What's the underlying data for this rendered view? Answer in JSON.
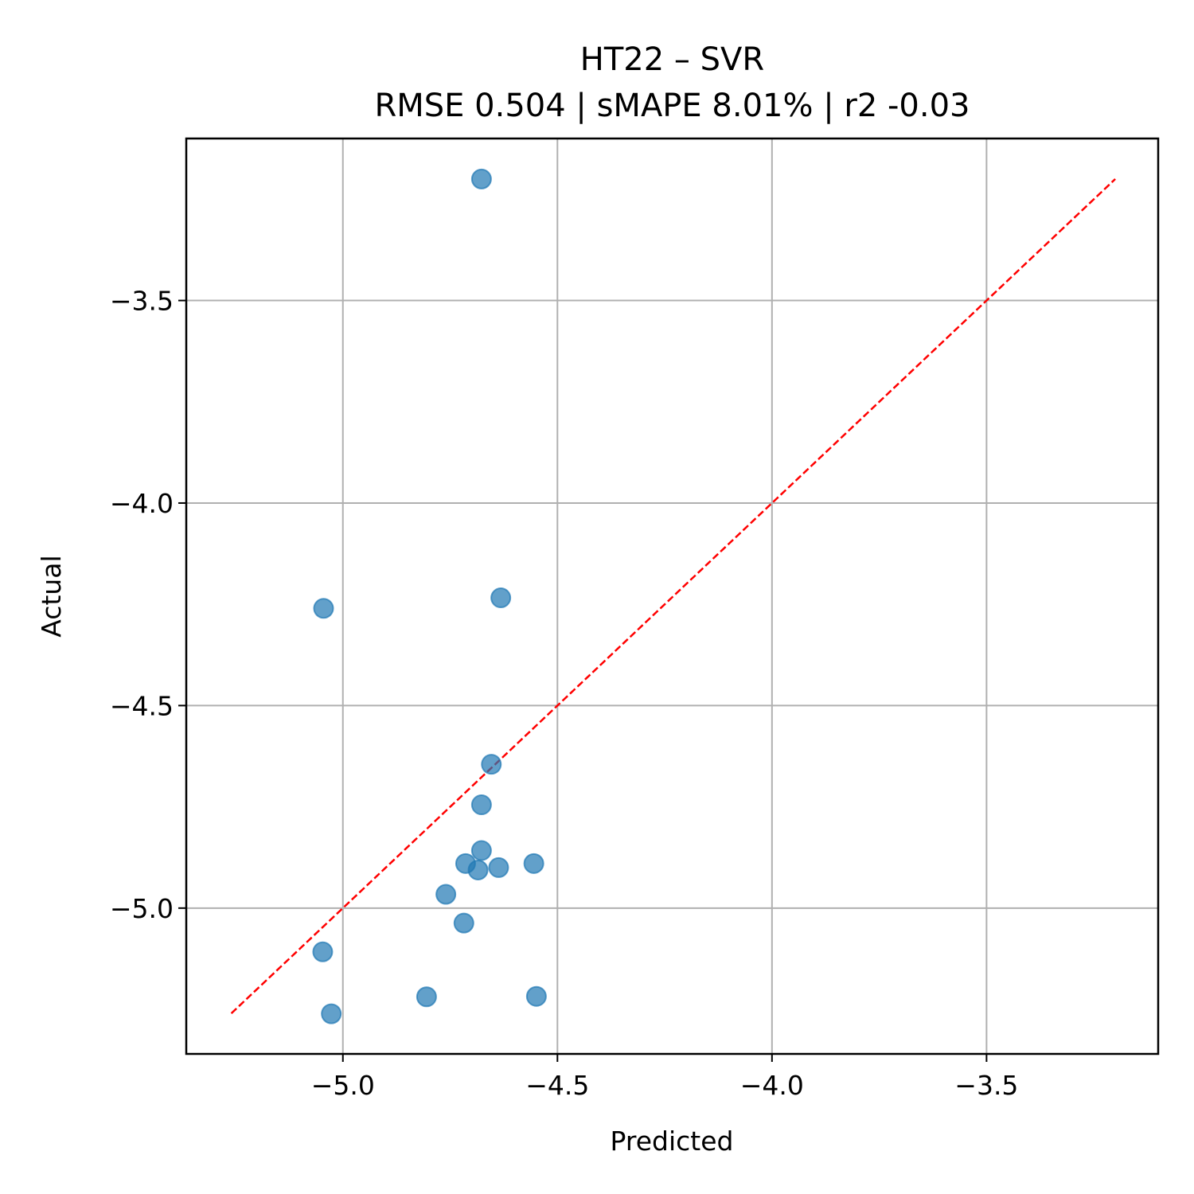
{
  "chart_data": {
    "type": "scatter",
    "title_line1": "HT22 – SVR",
    "title_line2": "RMSE 0.504 | sMAPE 8.01%  | r2 -0.03",
    "xlabel": "Predicted",
    "ylabel": "Actual",
    "xlim": [
      -5.365,
      -3.1
    ],
    "ylim": [
      -5.36,
      -3.1
    ],
    "xticks": [
      -5.0,
      -4.5,
      -4.0,
      -3.5
    ],
    "xtick_labels": [
      "−5.0",
      "−4.5",
      "−4.0",
      "−3.5"
    ],
    "yticks": [
      -5.0,
      -4.5,
      -4.0,
      -3.5
    ],
    "ytick_labels": [
      "−5.0",
      "−4.5",
      "−4.0",
      "−3.5"
    ],
    "grid": true,
    "point_color": "#1f77b4",
    "reference_line": {
      "from": [
        -5.26,
        -5.26
      ],
      "to": [
        -3.2,
        -3.2
      ],
      "color": "#ff0000",
      "style": "dashed"
    },
    "points": [
      {
        "x": -4.677,
        "y": -3.2
      },
      {
        "x": -5.045,
        "y": -4.26
      },
      {
        "x": -4.632,
        "y": -4.234
      },
      {
        "x": -4.654,
        "y": -4.645
      },
      {
        "x": -4.677,
        "y": -4.745
      },
      {
        "x": -4.677,
        "y": -4.858
      },
      {
        "x": -4.714,
        "y": -4.89
      },
      {
        "x": -4.685,
        "y": -4.906
      },
      {
        "x": -4.637,
        "y": -4.9
      },
      {
        "x": -4.555,
        "y": -4.89
      },
      {
        "x": -4.76,
        "y": -4.966
      },
      {
        "x": -4.718,
        "y": -5.037
      },
      {
        "x": -5.047,
        "y": -5.108
      },
      {
        "x": -4.805,
        "y": -5.219
      },
      {
        "x": -4.549,
        "y": -5.218
      },
      {
        "x": -5.027,
        "y": -5.261
      }
    ]
  }
}
